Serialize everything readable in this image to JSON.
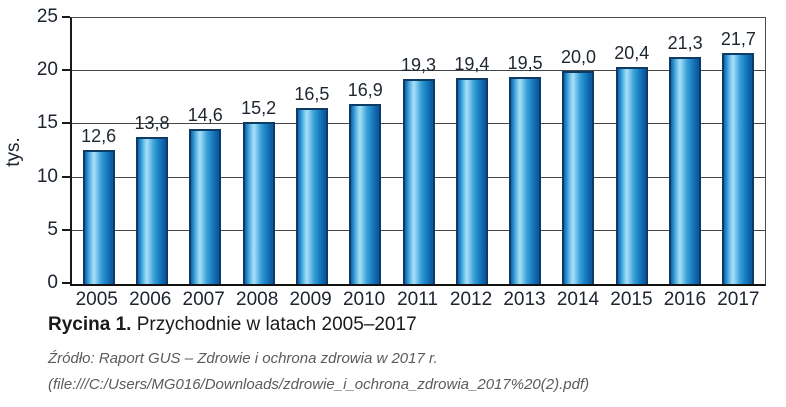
{
  "chart_data": {
    "type": "bar",
    "title": "",
    "categories": [
      "2005",
      "2006",
      "2007",
      "2008",
      "2009",
      "2010",
      "2011",
      "2012",
      "2013",
      "2014",
      "2015",
      "2016",
      "2017"
    ],
    "values": [
      12.6,
      13.8,
      14.6,
      15.2,
      16.5,
      16.9,
      19.3,
      19.4,
      19.5,
      20.0,
      20.4,
      21.3,
      21.7
    ],
    "value_labels": [
      "12,6",
      "13,8",
      "14,6",
      "15,2",
      "16,5",
      "16,9",
      "19,3",
      "19,4",
      "19,5",
      "20,0",
      "20,4",
      "21,3",
      "21,7"
    ],
    "xlabel": "",
    "ylabel": "tys.",
    "ylim": [
      0,
      25
    ],
    "yticks": [
      0,
      5,
      10,
      15,
      20,
      25
    ],
    "grid": true,
    "legend": "none",
    "bar_fill_light": "#a9def6",
    "bar_fill_dark": "#0f63a9",
    "bar_border": "#0e3a66"
  },
  "caption": {
    "label": "Rycina 1.",
    "text": " Przychodnie w latach 2005–2017"
  },
  "source": {
    "line1": "Źródło: Raport GUS – Zdrowie i ochrona zdrowia w 2017 r.",
    "line2": "(file:///C:/Users/MG016/Downloads/zdrowie_i_ochrona_zdrowia_2017%20(2).pdf)"
  }
}
